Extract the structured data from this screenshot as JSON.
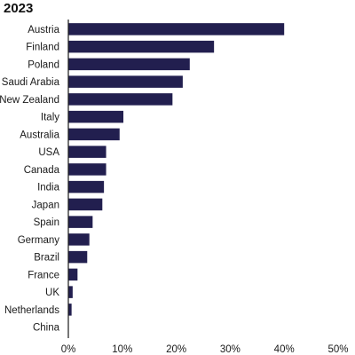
{
  "chart_data": {
    "type": "bar",
    "orientation": "horizontal",
    "title": "2023",
    "categories": [
      "Austria",
      "Finland",
      "Poland",
      "Saudi Arabia",
      "New Zealand",
      "Italy",
      "Australia",
      "USA",
      "Canada",
      "India",
      "Japan",
      "Spain",
      "Germany",
      "Brazil",
      "France",
      "UK",
      "Netherlands",
      "China"
    ],
    "values": [
      40,
      27,
      22.5,
      21.2,
      19.3,
      10.2,
      9.5,
      7,
      7,
      6.6,
      6.3,
      4.5,
      3.9,
      3.5,
      1.7,
      0.8,
      0.6,
      0
    ],
    "value_unit": "%",
    "xlim": [
      0,
      50
    ],
    "xticks": [
      "0%",
      "10%",
      "20%",
      "30%",
      "40%",
      "50%"
    ],
    "grid": false,
    "legend": "none",
    "bar_color": "#221f4f",
    "axis_color": "#1a1a1a"
  }
}
